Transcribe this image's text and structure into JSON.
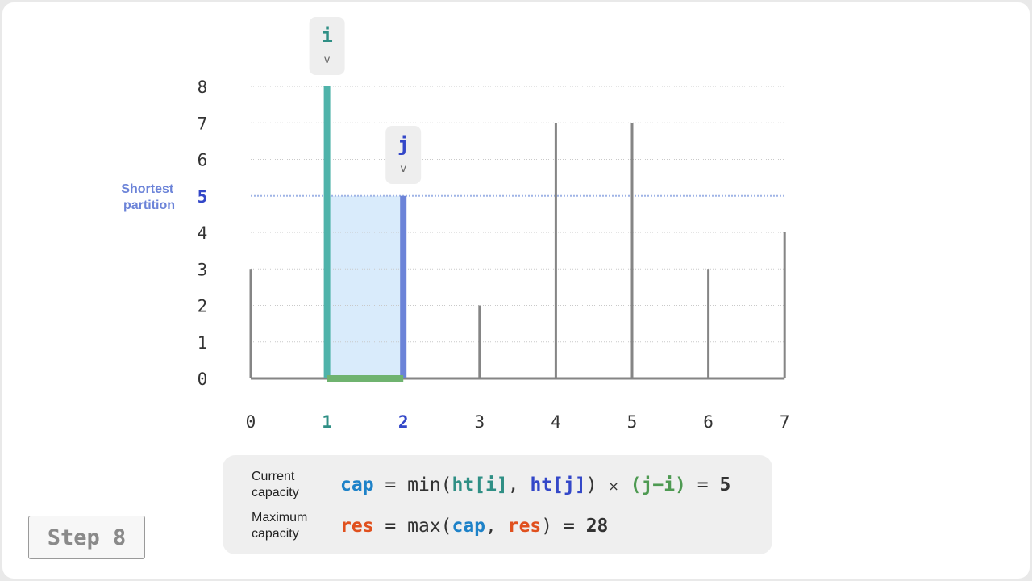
{
  "chart_data": {
    "type": "bar",
    "x": [
      0,
      1,
      2,
      3,
      4,
      5,
      6,
      7
    ],
    "heights": [
      3,
      8,
      5,
      2,
      7,
      7,
      3,
      4
    ],
    "y_ticks": [
      0,
      1,
      2,
      3,
      4,
      5,
      6,
      7,
      8
    ],
    "ylim": [
      0,
      8
    ],
    "grid": true,
    "pointer_i": {
      "label": "i",
      "index": 1,
      "arrow": "v"
    },
    "pointer_j": {
      "label": "j",
      "index": 2,
      "arrow": "v"
    },
    "shortest_partition": {
      "label": "Shortest partition",
      "value": 5
    },
    "colors": {
      "bar": "#858585",
      "bar_i": "#4fb3aa",
      "bar_j": "#6b83d8",
      "area_fill": "#d9ebfb",
      "base_segment": "#6fb36f",
      "grid": "#c9c9c9",
      "shortest_line": "#9fb4e6"
    }
  },
  "formula": {
    "row1": {
      "label": "Current\ncapacity",
      "lhs": "cap",
      "eq": " = ",
      "fn": "min(",
      "arg1": "ht[i]",
      "comma": ", ",
      "arg2": "ht[j]",
      "close": ") ",
      "times": "×",
      "space": " ",
      "diff": "(j−i)",
      "eq2": " = ",
      "value": "5"
    },
    "row2": {
      "label": "Maximum\ncapacity",
      "lhs": "res",
      "eq": " = ",
      "fn": "max(",
      "arg1": "cap",
      "comma": ", ",
      "arg2": "res",
      "close": ")",
      "eq2": " = ",
      "value": "28"
    }
  },
  "step": {
    "label": "Step 8"
  }
}
